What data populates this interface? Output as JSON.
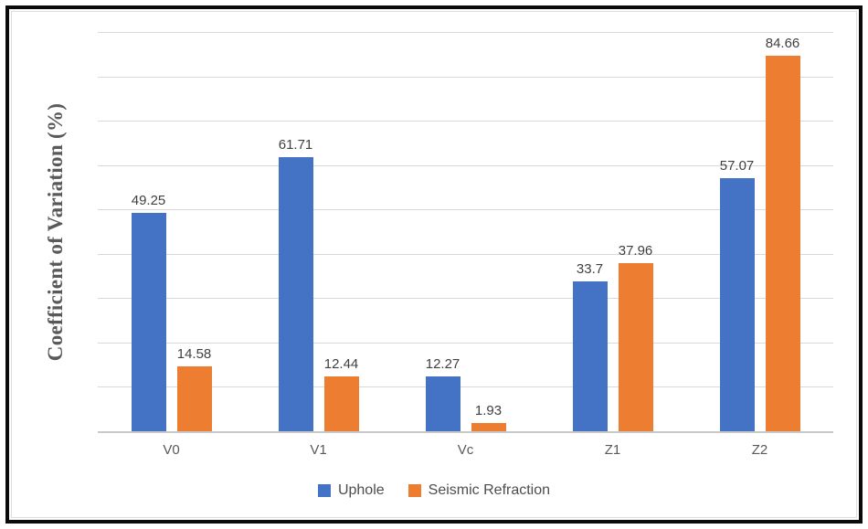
{
  "chart_data": {
    "type": "bar",
    "title": "",
    "xlabel": "",
    "ylabel": "Coefficient of Variation (%)",
    "categories": [
      "V0",
      "V1",
      "Vc",
      "Z1",
      "Z2"
    ],
    "series": [
      {
        "name": "Uphole",
        "color": "#4472C4",
        "values": [
          49.25,
          61.71,
          12.27,
          33.7,
          57.07
        ],
        "data_labels": [
          "49.25",
          "61.71",
          "12.27",
          "33.7",
          "57.07"
        ]
      },
      {
        "name": "Seismic Refraction",
        "color": "#ED7D31",
        "values": [
          14.58,
          12.44,
          1.93,
          37.96,
          84.66
        ],
        "data_labels": [
          "14.58",
          "12.44",
          "1.93",
          "37.96",
          "84.66"
        ]
      }
    ],
    "ylim": [
      0,
      90
    ],
    "gridline_step": 10,
    "grid": true,
    "y_tick_labels_visible": false,
    "legend_position": "bottom",
    "colors": {
      "gridline": "#d9d9d9",
      "axis_line": "#c9c9c9",
      "data_label_text": "#404040",
      "category_label_text": "#595959",
      "legend_text": "#4d4d4d",
      "frame_border": "#0a0a0a",
      "chart_border": "#dedede",
      "background": "#ffffff"
    }
  }
}
